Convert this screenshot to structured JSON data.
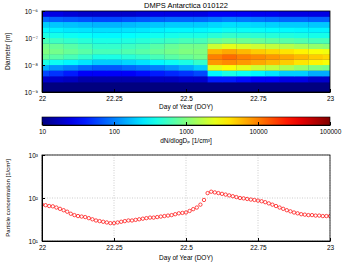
{
  "chart_data": [
    {
      "type": "heatmap",
      "title": "DMPS Antarctica 010122",
      "xlabel": "Day of Year (DOY)",
      "ylabel": "Diameter [m]",
      "log": "y",
      "xlim": [
        22,
        23
      ],
      "xticks": [
        22,
        22.25,
        22.5,
        22.75,
        23
      ],
      "ylim": [
        1e-09,
        1e-06
      ],
      "yticks": [
        {
          "value": 1e-09,
          "label": "10⁻⁹"
        },
        {
          "value": 1e-08,
          "label": "10⁻⁸"
        },
        {
          "value": 1e-07,
          "label": "10⁻⁷"
        },
        {
          "value": 1e-06,
          "label": "10⁻⁶"
        }
      ],
      "x": [
        22,
        22.05,
        22.1,
        22.15,
        22.2,
        22.25,
        22.3,
        22.35,
        22.4,
        22.45,
        22.5,
        22.55,
        22.6,
        22.65,
        22.7,
        22.75,
        22.8,
        22.85,
        22.9,
        22.95,
        23
      ],
      "y": [
        3e-09,
        5e-09,
        8e-09,
        1.3e-08,
        2e-08,
        3.2e-08,
        5e-08,
        8e-08,
        1.3e-07,
        2e-07,
        3.2e-07,
        5e-07,
        8e-07
      ],
      "z": [
        [
          20,
          20,
          18,
          15,
          15,
          15,
          15,
          15,
          18,
          18,
          20,
          20,
          40,
          40,
          35,
          30,
          30,
          25,
          25,
          20,
          20
        ],
        [
          60,
          50,
          40,
          30,
          30,
          30,
          30,
          35,
          40,
          45,
          50,
          60,
          300,
          400,
          350,
          300,
          250,
          200,
          200,
          150,
          150
        ],
        [
          150,
          120,
          100,
          80,
          70,
          70,
          80,
          90,
          100,
          120,
          150,
          200,
          2500,
          3000,
          2500,
          2000,
          1800,
          1500,
          1200,
          1000,
          900
        ],
        [
          400,
          350,
          300,
          250,
          200,
          200,
          220,
          250,
          300,
          350,
          400,
          500,
          8000,
          9000,
          8000,
          7000,
          6000,
          5000,
          4000,
          3500,
          3000
        ],
        [
          800,
          700,
          600,
          500,
          400,
          400,
          450,
          500,
          600,
          700,
          800,
          900,
          10000,
          12000,
          10000,
          9000,
          8000,
          7000,
          6000,
          5000,
          4500
        ],
        [
          1000,
          900,
          800,
          700,
          600,
          600,
          650,
          700,
          800,
          900,
          1000,
          1000,
          6000,
          7000,
          6000,
          5000,
          4500,
          4000,
          3500,
          3000,
          2800
        ],
        [
          900,
          800,
          700,
          600,
          500,
          500,
          550,
          600,
          700,
          800,
          900,
          900,
          2000,
          2500,
          2200,
          2000,
          1800,
          1600,
          1400,
          1200,
          1100
        ],
        [
          600,
          550,
          500,
          450,
          400,
          400,
          420,
          450,
          500,
          550,
          600,
          600,
          800,
          900,
          850,
          800,
          750,
          700,
          650,
          600,
          600
        ],
        [
          400,
          380,
          350,
          330,
          300,
          300,
          320,
          340,
          360,
          380,
          400,
          400,
          450,
          500,
          480,
          460,
          440,
          420,
          400,
          380,
          380
        ],
        [
          300,
          280,
          260,
          250,
          240,
          240,
          250,
          260,
          280,
          300,
          300,
          300,
          320,
          350,
          340,
          330,
          320,
          310,
          300,
          290,
          290
        ],
        [
          200,
          190,
          180,
          170,
          160,
          160,
          170,
          180,
          190,
          200,
          200,
          200,
          220,
          240,
          230,
          220,
          210,
          200,
          200,
          190,
          190
        ],
        [
          80,
          75,
          70,
          65,
          60,
          60,
          65,
          70,
          75,
          80,
          80,
          80,
          90,
          100,
          95,
          90,
          85,
          80,
          80,
          75,
          75
        ],
        [
          25,
          25,
          22,
          20,
          20,
          20,
          20,
          22,
          25,
          25,
          25,
          25,
          30,
          30,
          30,
          28,
          28,
          25,
          25,
          25,
          25
        ]
      ],
      "colorbar": {
        "label": "dN/dlogDₚ [1/cm³]",
        "log": true,
        "lim": [
          10,
          100000
        ],
        "ticks": [
          10,
          100,
          1000,
          10000,
          100000
        ]
      }
    },
    {
      "type": "scatter",
      "xlabel": "Day of Year (DOY)",
      "ylabel": "Particle concentration [1/cm³]",
      "log": "y",
      "grid": true,
      "marker": "circle",
      "color": "#ff0000",
      "xlim": [
        22,
        23
      ],
      "xticks": [
        22,
        22.25,
        22.5,
        22.75,
        23
      ],
      "ylim": [
        10,
        1000
      ],
      "yticks": [
        {
          "value": 10,
          "label": "10¹"
        },
        {
          "value": 100,
          "label": "10²"
        },
        {
          "value": 1000,
          "label": "10³"
        }
      ],
      "x": [
        22,
        22.0125,
        22.025,
        22.0375,
        22.05,
        22.0625,
        22.075,
        22.0875,
        22.1,
        22.1125,
        22.125,
        22.1375,
        22.15,
        22.1625,
        22.175,
        22.1875,
        22.2,
        22.2125,
        22.225,
        22.2375,
        22.25,
        22.2625,
        22.275,
        22.2875,
        22.3,
        22.3125,
        22.325,
        22.3375,
        22.35,
        22.3625,
        22.375,
        22.3875,
        22.4,
        22.4125,
        22.425,
        22.4375,
        22.45,
        22.4625,
        22.475,
        22.4875,
        22.5,
        22.5125,
        22.525,
        22.5375,
        22.55,
        22.5625,
        22.575,
        22.5875,
        22.6,
        22.6125,
        22.625,
        22.6375,
        22.65,
        22.6625,
        22.675,
        22.6875,
        22.7,
        22.7125,
        22.725,
        22.7375,
        22.75,
        22.7625,
        22.775,
        22.7875,
        22.8,
        22.8125,
        22.825,
        22.8375,
        22.85,
        22.8625,
        22.875,
        22.8875,
        22.9,
        22.9125,
        22.925,
        22.9375,
        22.95,
        22.9625,
        22.975,
        22.9875,
        23
      ],
      "values": [
        70,
        68,
        65,
        64,
        60,
        56,
        52,
        48,
        43,
        40,
        38,
        37,
        36,
        34,
        32,
        30,
        29,
        28,
        27,
        26,
        26,
        27,
        28,
        29,
        30,
        30,
        31,
        32,
        33,
        34,
        35,
        35,
        36,
        37,
        38,
        39,
        40,
        42,
        44,
        45,
        46,
        50,
        55,
        60,
        70,
        90,
        130,
        140,
        135,
        130,
        125,
        120,
        115,
        110,
        105,
        100,
        98,
        95,
        92,
        90,
        87,
        84,
        80,
        75,
        70,
        65,
        60,
        56,
        52,
        49,
        46,
        44,
        42,
        41,
        40,
        40,
        39,
        39,
        38,
        38,
        38
      ]
    }
  ]
}
